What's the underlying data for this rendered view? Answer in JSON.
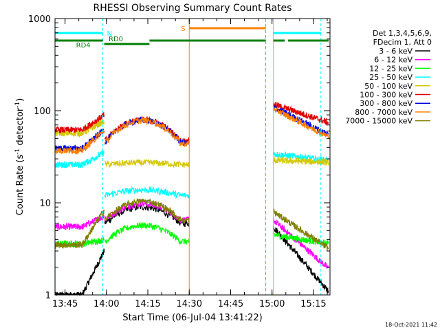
{
  "chart_data": {
    "type": "line",
    "title": "RHESSI Observing Summary Count Rates",
    "xlabel": "Start Time (06-Jul-04 13:41:22)",
    "ylabel_main": "Count Rate (s",
    "ylabel_sup1": "-1",
    "ylabel_mid": " detector",
    "ylabel_sup2": "-1",
    "ylabel_end": ")",
    "yscale": "log",
    "ylim": [
      1,
      1000
    ],
    "xlim": [
      "13:41",
      "15:21"
    ],
    "x_ticks": [
      "13:45",
      "14:00",
      "14:15",
      "14:30",
      "14:45",
      "15:00",
      "15:15"
    ],
    "y_ticks": [
      "1",
      "10",
      "100",
      "1000"
    ],
    "footer_date": "18-Oct-2021 11:42",
    "legend_header": [
      "Det 1,3,4,5,6,9,",
      "FDecim 1, Att 0"
    ],
    "legend_position": "right",
    "series": [
      {
        "name": "3 - 6 keV",
        "color": "#000000"
      },
      {
        "name": "6 - 12 keV",
        "color": "#ff00ff"
      },
      {
        "name": "12 - 25 keV",
        "color": "#00ff00"
      },
      {
        "name": "25 - 50 keV",
        "color": "#00ffff"
      },
      {
        "name": "50 - 100 keV",
        "color": "#d4c800"
      },
      {
        "name": "100 - 300 keV",
        "color": "#e00000"
      },
      {
        "name": "300 - 800 keV",
        "color": "#0000e0"
      },
      {
        "name": "800 - 7000 keV",
        "color": "#ff8000"
      },
      {
        "name": "7000 - 15000 keV",
        "color": "#808000"
      }
    ],
    "flags": {
      "N_label": "N",
      "RD0_label": "RD0",
      "RD4_label": "RD4",
      "S_label": "S"
    }
  },
  "colors": {
    "night": "#00ffff",
    "saa": "#ff8000",
    "flag_green": "#008000"
  }
}
